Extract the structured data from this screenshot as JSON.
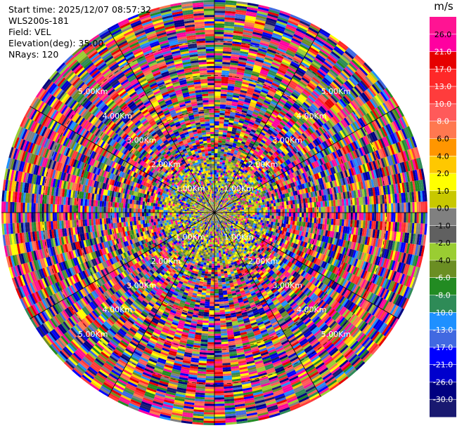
{
  "info": {
    "start_time": "Start time: 2025/12/07 08:57:32",
    "site": "WLS200s-181",
    "field": "Field: VEL",
    "elevation": "Elevation(deg): 35.00",
    "nrays": "NRays: 120"
  },
  "chart_data": {
    "type": "heatmap",
    "projection": "polar-ppi",
    "field": "VEL",
    "rays": 120,
    "range_rings_km": [
      1,
      2,
      3,
      4,
      5
    ],
    "ring_labels": [
      "1.00Km",
      "2.00Km",
      "3.00Km",
      "4.00Km",
      "5.00Km"
    ],
    "max_range_km": 6.2,
    "grid": true,
    "colorbar": {
      "unit": "m/s",
      "placement": "right",
      "ticks": [
        "26.0",
        "21.0",
        "17.0",
        "13.0",
        "10.0",
        "8.0",
        "6.0",
        "4.0",
        "2.0",
        "1.0",
        "0.0",
        "-1.0",
        "-2.0",
        "-4.0",
        "-6.0",
        "-8.0",
        "-10.0",
        "-13.0",
        "-17.0",
        "-21.0",
        "-26.0",
        "-30.0"
      ],
      "colors": [
        "#ff1493",
        "#ff00a0",
        "#e60000",
        "#ff2828",
        "#ff3c3c",
        "#ff5a5a",
        "#ff7850",
        "#ff9600",
        "#ffc800",
        "#ffff00",
        "#c8c800",
        "#808080",
        "#606060",
        "#9acd32",
        "#6b8e23",
        "#228b22",
        "#2e8b57",
        "#1e90ff",
        "#4169e1",
        "#0000ff",
        "#0000cd",
        "#000080",
        "#191970"
      ]
    }
  }
}
